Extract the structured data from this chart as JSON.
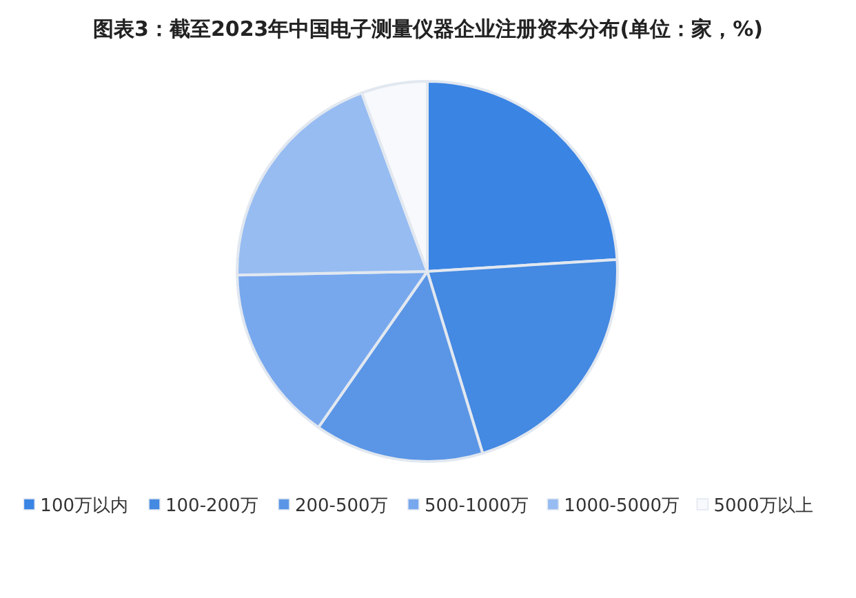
{
  "chart_data": {
    "type": "pie",
    "title": "图表3：截至2023年中国电子测量仪器企业注册资本分布(单位：家，%)",
    "categories": [
      "100万以内",
      "100-200万",
      "200-500万",
      "500-1000万",
      "1000-5000万",
      "5000万以上"
    ],
    "values": [
      24,
      21.3,
      14.4,
      15,
      19.7,
      5.6
    ],
    "colors": [
      "#3a84e4",
      "#4489e2",
      "#5b96e6",
      "#77a8ee",
      "#96bcf2",
      "#f7f9fc"
    ],
    "legend": "bottom"
  }
}
